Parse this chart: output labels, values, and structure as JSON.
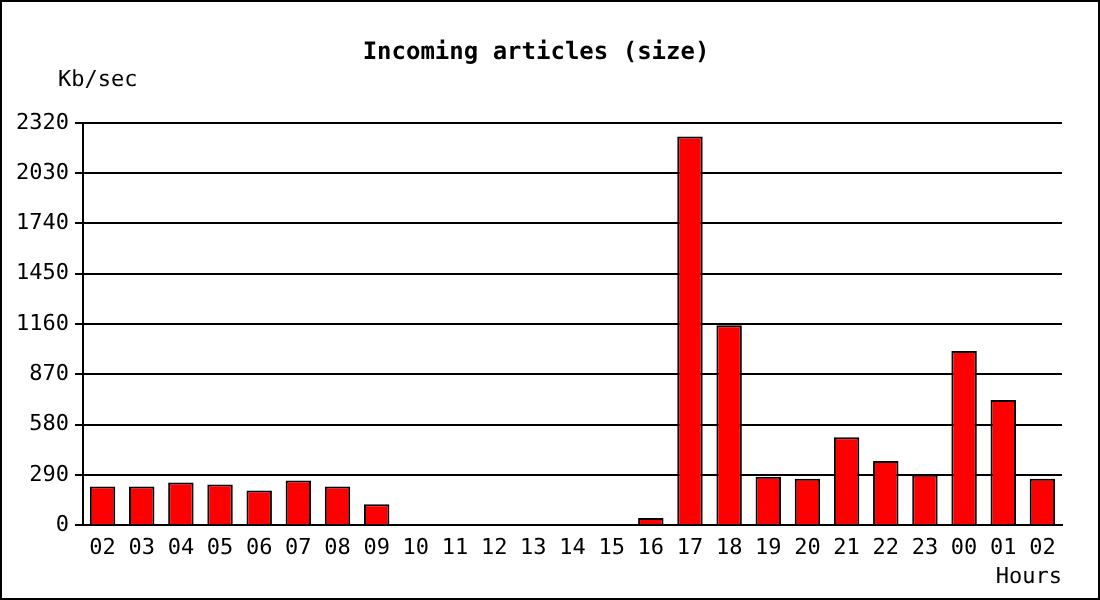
{
  "chart_data": {
    "type": "bar",
    "title": "Incoming articles (size)",
    "ylabel": "Kb/sec",
    "xlabel": "Hours",
    "categories": [
      "02",
      "03",
      "04",
      "05",
      "06",
      "07",
      "08",
      "09",
      "10",
      "11",
      "12",
      "13",
      "14",
      "15",
      "16",
      "17",
      "18",
      "19",
      "20",
      "21",
      "22",
      "23",
      "00",
      "01",
      "02"
    ],
    "values": [
      223,
      223,
      246,
      234,
      200,
      257,
      223,
      121,
      0,
      0,
      0,
      0,
      0,
      0,
      42,
      2241,
      1153,
      280,
      268,
      507,
      370,
      291,
      1005,
      722,
      268
    ],
    "color": "#ff0000",
    "ylim": [
      0,
      2320
    ],
    "yticks": [
      0,
      290,
      580,
      870,
      1160,
      1450,
      1740,
      2030,
      2320
    ],
    "grid": "y"
  }
}
